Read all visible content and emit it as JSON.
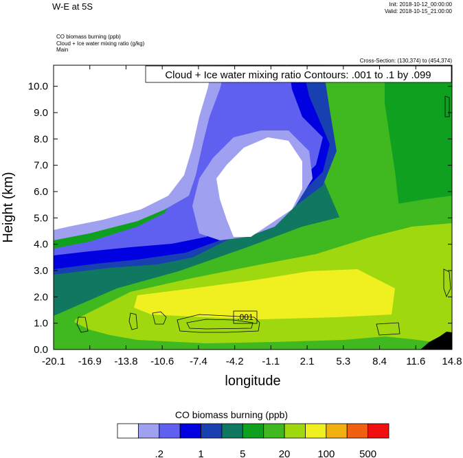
{
  "header": {
    "title": "W-E at 5S",
    "init": "Init: 2018-10-12_00:00:00",
    "valid": "Valid: 2018-10-15_21:00:00",
    "field1": "CO biomass burning   (ppb)",
    "field2": "Cloud + Ice water mixing ratio   (g/kg)",
    "field3": "Main",
    "cross_section": "Cross-Section: (130,374) to (454,374)"
  },
  "chart_data": {
    "type": "heatmap",
    "xlabel": "longitude",
    "ylabel": "Height (km)",
    "xlim": [
      -20.1,
      14.8
    ],
    "ylim": [
      0.0,
      10.8
    ],
    "x_ticks": [
      "-20.1",
      "-16.9",
      "-13.8",
      "-10.6",
      "-7.4",
      "-4.2",
      "-1.1",
      "2.1",
      "5.3",
      "8.4",
      "11.6",
      "14.8"
    ],
    "y_ticks": [
      0.0,
      1.0,
      2.0,
      3.0,
      4.0,
      5.0,
      6.0,
      7.0,
      8.0,
      9.0,
      10.0
    ],
    "y_tick_labels": [
      "0.0",
      "1.0",
      "2.0",
      "3.0",
      "4.0",
      "5.0",
      "6.0",
      "7.0",
      "8.0",
      "9.0",
      "10.0"
    ],
    "contour_info": "Cloud + Ice water mixing ratio Contours: .001 to .1 by .099",
    "contour_label": ".001",
    "colorbar": {
      "title": "CO biomass burning  (ppb)",
      "colors": [
        "#ffffff",
        "#a0a0f0",
        "#6060f0",
        "#0000e0",
        "#1840b0",
        "#107860",
        "#10a020",
        "#40b820",
        "#a0d810",
        "#f0f020",
        "#f0b010",
        "#f06010",
        "#f01010"
      ],
      "labels": [
        ".2",
        "1",
        "5",
        "20",
        "100",
        "500"
      ]
    }
  }
}
